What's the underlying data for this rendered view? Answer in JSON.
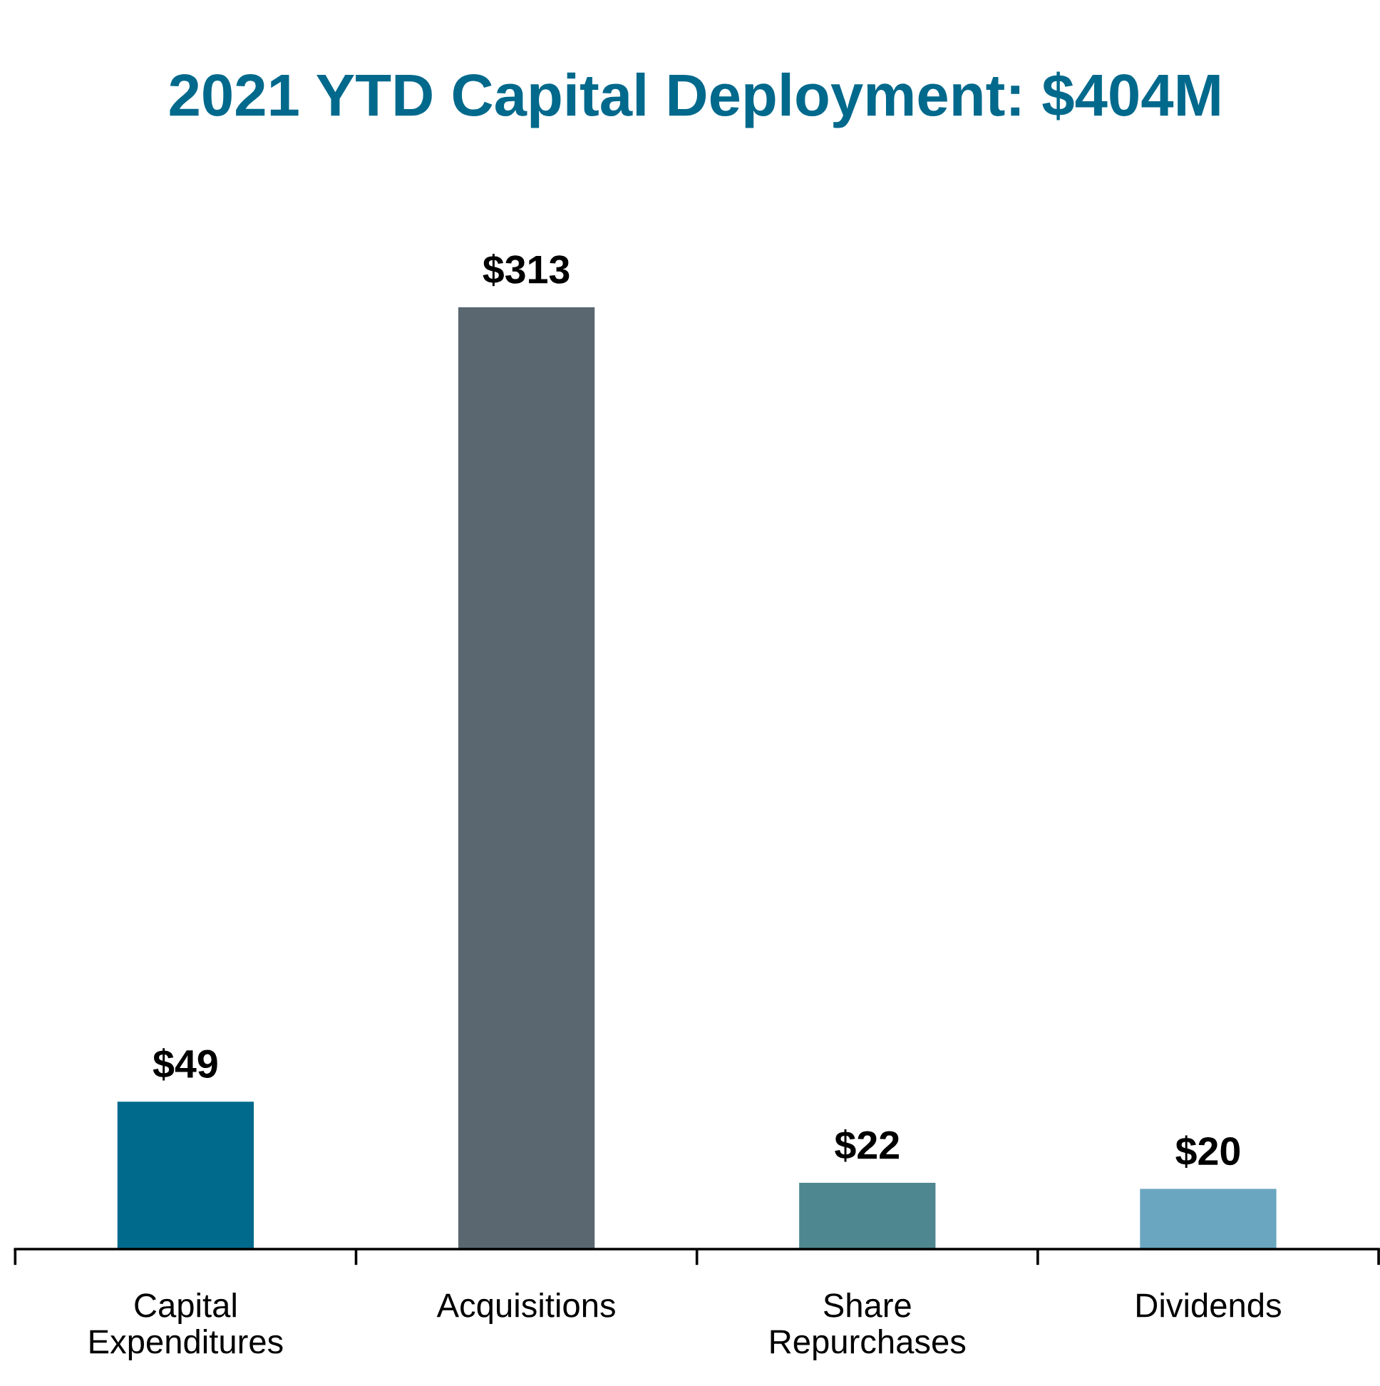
{
  "chart_data": {
    "type": "bar",
    "title": "2021 YTD Capital Deployment: $404M",
    "categories": [
      "Capital\nExpenditures",
      "Acquisitions",
      "Share\nRepurchases",
      "Dividends"
    ],
    "values": [
      49,
      313,
      22,
      20
    ],
    "colors": [
      "#006a8c",
      "#5a6770",
      "#4f8790",
      "#6aa6c0"
    ],
    "value_labels": [
      "$49",
      "$313",
      "$22",
      "$20"
    ],
    "grid": false,
    "legend": false
  }
}
